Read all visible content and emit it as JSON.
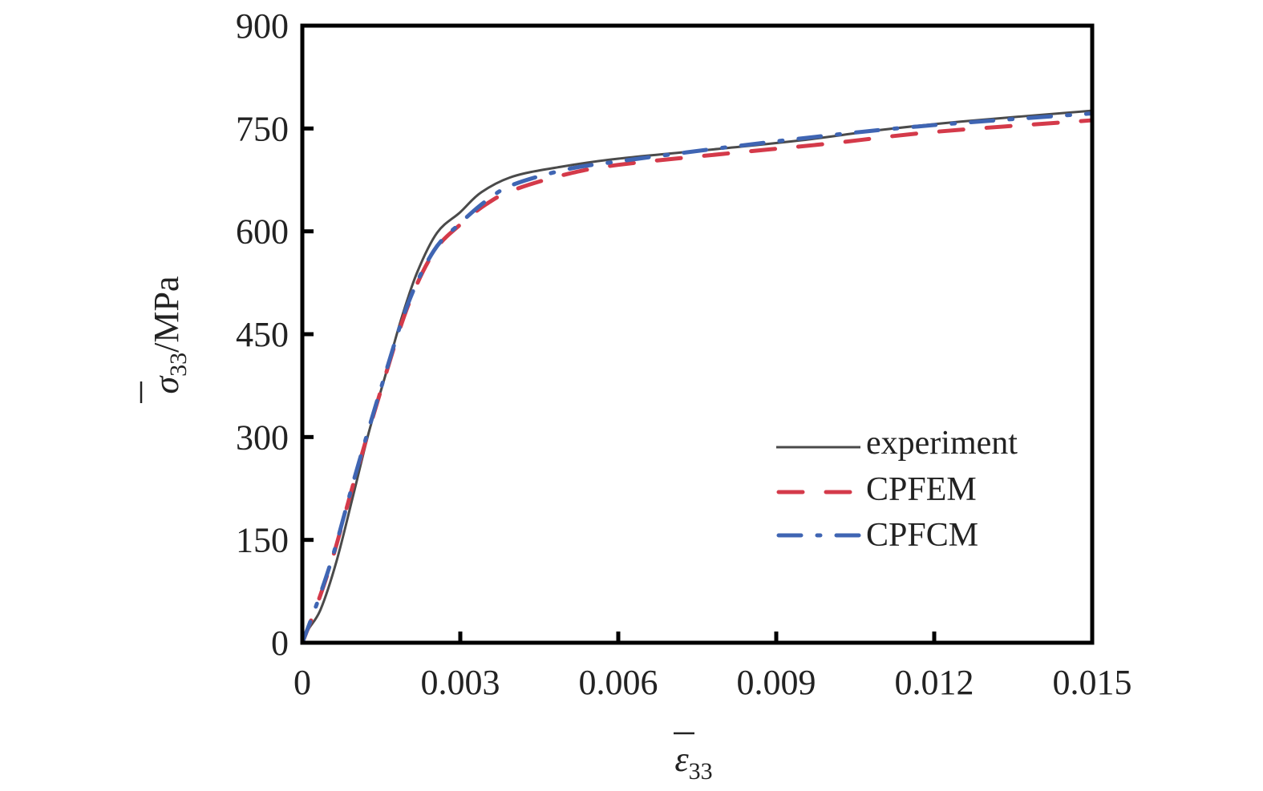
{
  "chart_data": {
    "type": "line",
    "title": "",
    "xlabel": {
      "symbol": "ε",
      "subscript": "33",
      "unit": ""
    },
    "ylabel": {
      "symbol": "σ",
      "subscript": "33",
      "unit": "/MPa"
    },
    "xlim": [
      0,
      0.015
    ],
    "ylim": [
      0,
      900
    ],
    "xticks": [
      "0",
      "0.003",
      "0.006",
      "0.009",
      "0.012",
      "0.015"
    ],
    "yticks": [
      "0",
      "150",
      "300",
      "450",
      "600",
      "750",
      "900"
    ],
    "grid": false,
    "legend_position": "right-middle",
    "series": [
      {
        "name": "experiment",
        "color": "#4a4a4a",
        "style": "solid",
        "x": [
          0,
          0.00012,
          0.00035,
          0.00065,
          0.00096,
          0.00126,
          0.00157,
          0.00187,
          0.00218,
          0.00256,
          0.003,
          0.0034,
          0.004,
          0.0049,
          0.006,
          0.008,
          0.0095,
          0.011,
          0.0125,
          0.015
        ],
        "y": [
          0,
          20,
          49,
          119,
          213,
          306,
          388,
          470,
          540,
          598,
          628,
          657,
          680,
          694,
          706,
          721,
          733,
          748,
          760,
          776
        ]
      },
      {
        "name": "CPFEM",
        "color": "#d43a4a",
        "style": "dashed",
        "x": [
          0,
          0.0003,
          0.0006,
          0.001,
          0.0015,
          0.002,
          0.0025,
          0.003,
          0.0035,
          0.004,
          0.005,
          0.006,
          0.008,
          0.01,
          0.012,
          0.015
        ],
        "y": [
          0,
          60,
          130,
          240,
          370,
          490,
          570,
          610,
          640,
          660,
          683,
          697,
          713,
          728,
          745,
          762
        ]
      },
      {
        "name": "CPFCM",
        "color": "#3f65b3",
        "style": "dash-dot",
        "x": [
          0,
          0.0003,
          0.0006,
          0.001,
          0.0015,
          0.002,
          0.0025,
          0.003,
          0.0035,
          0.004,
          0.005,
          0.006,
          0.008,
          0.01,
          0.012,
          0.015
        ],
        "y": [
          0,
          62,
          132,
          243,
          373,
          493,
          572,
          612,
          645,
          668,
          690,
          702,
          722,
          740,
          755,
          772
        ]
      }
    ]
  }
}
